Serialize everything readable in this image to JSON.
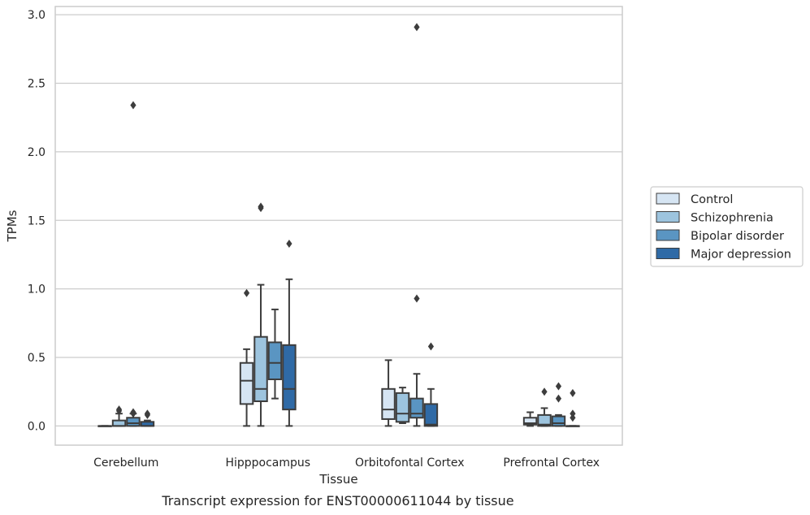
{
  "chart_data": {
    "type": "box",
    "title": "Transcript expression for ENST00000611044 by tissue",
    "xlabel": "Tissue",
    "ylabel": "TPMs",
    "ylim": [
      -0.14,
      3.06
    ],
    "yticks": [
      "0.0",
      "0.5",
      "1.0",
      "1.5",
      "2.0",
      "2.5",
      "3.0"
    ],
    "ytick_values": [
      0,
      0.5,
      1.0,
      1.5,
      2.0,
      2.5,
      3.0
    ],
    "grid": true,
    "legend_position": "right",
    "categories": [
      "Cerebellum",
      "Hipppocampus",
      "Orbitofontal Cortex",
      "Prefrontal Cortex"
    ],
    "series": [
      {
        "name": "Control",
        "color": "#d6e5f3",
        "boxes": [
          {
            "whislo": 0,
            "q1": 0,
            "med": 0,
            "q3": 0,
            "whishi": 0,
            "fliers": []
          },
          {
            "whislo": 0,
            "q1": 0.16,
            "med": 0.33,
            "q3": 0.46,
            "whishi": 0.56,
            "fliers": [
              0.97
            ]
          },
          {
            "whislo": 0,
            "q1": 0.05,
            "med": 0.12,
            "q3": 0.27,
            "whishi": 0.48,
            "fliers": []
          },
          {
            "whislo": 0,
            "q1": 0.01,
            "med": 0.02,
            "q3": 0.06,
            "whishi": 0.1,
            "fliers": []
          }
        ]
      },
      {
        "name": "Schizophrenia",
        "color": "#9dc4de",
        "boxes": [
          {
            "whislo": 0,
            "q1": 0,
            "med": 0,
            "q3": 0.04,
            "whishi": 0.09,
            "fliers": [
              0.11,
              0.12
            ]
          },
          {
            "whislo": 0,
            "q1": 0.18,
            "med": 0.27,
            "q3": 0.65,
            "whishi": 1.03,
            "fliers": [
              1.59,
              1.6
            ]
          },
          {
            "whislo": 0.02,
            "q1": 0.03,
            "med": 0.09,
            "q3": 0.24,
            "whishi": 0.28,
            "fliers": []
          },
          {
            "whislo": 0,
            "q1": 0,
            "med": 0.01,
            "q3": 0.08,
            "whishi": 0.13,
            "fliers": [
              0.25
            ]
          }
        ]
      },
      {
        "name": "Bipolar disorder",
        "color": "#5a95c2",
        "boxes": [
          {
            "whislo": 0,
            "q1": 0,
            "med": 0.02,
            "q3": 0.06,
            "whishi": 0.09,
            "fliers": [
              0.09,
              0.1,
              2.34
            ]
          },
          {
            "whislo": 0.2,
            "q1": 0.34,
            "med": 0.46,
            "q3": 0.61,
            "whishi": 0.85,
            "fliers": []
          },
          {
            "whislo": 0,
            "q1": 0.06,
            "med": 0.09,
            "q3": 0.2,
            "whishi": 0.38,
            "fliers": [
              0.93,
              2.91
            ]
          },
          {
            "whislo": 0,
            "q1": 0,
            "med": 0.02,
            "q3": 0.07,
            "whishi": 0.08,
            "fliers": [
              0.2,
              0.29
            ]
          }
        ]
      },
      {
        "name": "Major depression",
        "color": "#2f6aa6",
        "boxes": [
          {
            "whislo": 0,
            "q1": 0,
            "med": 0,
            "q3": 0.03,
            "whishi": 0.04,
            "fliers": [
              0.08,
              0.09
            ]
          },
          {
            "whislo": 0,
            "q1": 0.12,
            "med": 0.27,
            "q3": 0.59,
            "whishi": 1.07,
            "fliers": [
              1.33
            ]
          },
          {
            "whislo": 0,
            "q1": 0,
            "med": 0.01,
            "q3": 0.16,
            "whishi": 0.27,
            "fliers": [
              0.58
            ]
          },
          {
            "whislo": 0,
            "q1": 0,
            "med": 0,
            "q3": 0,
            "whishi": 0,
            "fliers": [
              0.06,
              0.09,
              0.24
            ]
          }
        ]
      }
    ]
  }
}
